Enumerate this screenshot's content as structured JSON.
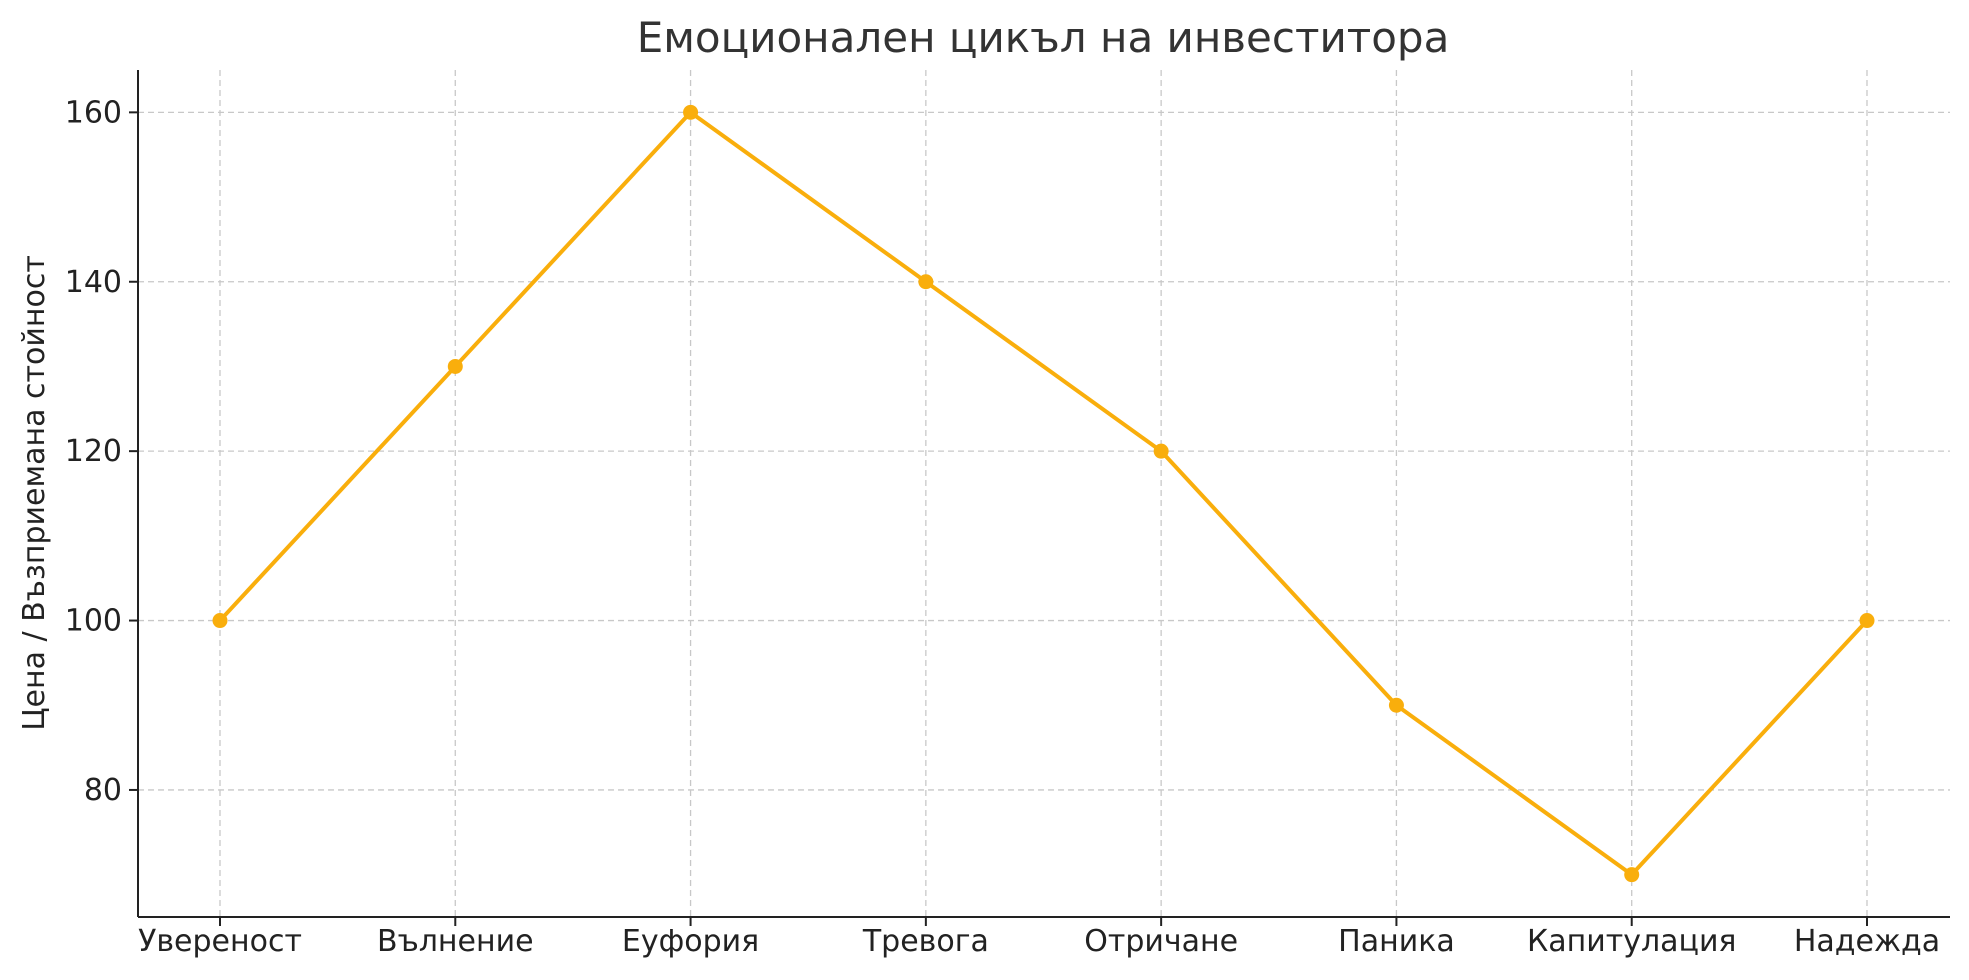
{
  "chart_data": {
    "type": "line",
    "title": "Емоционален цикъл на инвеститора",
    "xlabel": "",
    "ylabel": "Цена / Възприемана стойност",
    "categories": [
      "Увереност",
      "Вълнение",
      "Еуфория",
      "Тревога",
      "Отричане",
      "Паника",
      "Капитулация",
      "Надежда"
    ],
    "series": [
      {
        "values": [
          100,
          130,
          160,
          140,
          120,
          90,
          70,
          100
        ]
      }
    ],
    "ylim": [
      65,
      165
    ],
    "yticks": [
      80,
      100,
      120,
      140,
      160
    ],
    "grid": true,
    "line_color": "#F9AE0C"
  }
}
